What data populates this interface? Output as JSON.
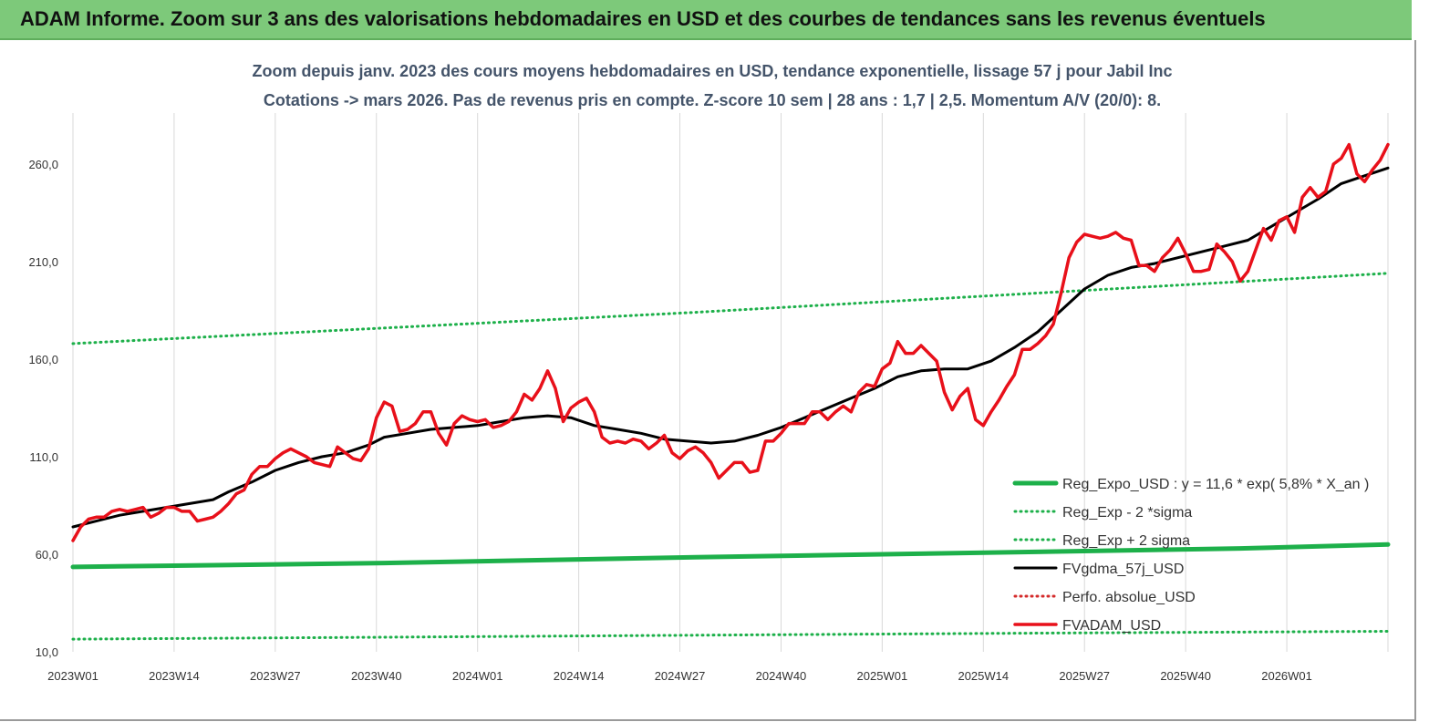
{
  "banner": {
    "title": "ADAM Informe. Zoom sur 3 ans des valorisations hebdomadaires en USD et des courbes de tendances sans les revenus éventuels"
  },
  "chart_data": {
    "type": "line",
    "title_line1": "Zoom depuis janv. 2023 des cours moyens hebdomadaires en USD, tendance exponentielle, lissage 57 j pour Jabil Inc",
    "title_line2": "Cotations -> mars 2026. Pas de revenus pris en compte. Z-score 10 sem | 28 ans : 1,7 | 2,5. Momentum A/V (20/0): 8.",
    "ylim": [
      10,
      285
    ],
    "y_ticks": [
      10,
      60,
      110,
      160,
      210,
      260
    ],
    "y_tick_labels": [
      "10,0",
      "60,0",
      "110,0",
      "160,0",
      "210,0",
      "260,0"
    ],
    "x_range": [
      0,
      169
    ],
    "x_tick_positions": [
      0,
      13,
      26,
      39,
      52,
      65,
      78,
      91,
      104,
      117,
      130,
      143,
      156
    ],
    "x_tick_labels": [
      "2023W01",
      "2023W14",
      "2023W27",
      "2023W40",
      "2024W01",
      "2024W14",
      "2024W27",
      "2024W40",
      "2025W01",
      "2025W14",
      "2025W27",
      "2025W40",
      "2026W01"
    ],
    "grid": "vertical",
    "legend_position": "bottom-right",
    "colors": {
      "green": "#1db04a",
      "black": "#000000",
      "red": "#e8101a",
      "dotred": "#d42a2a"
    },
    "series": [
      {
        "name": "Reg_Expo_USD : y = 11,6 * exp( 5,8% *  X_an )",
        "style": "thick",
        "color": "#1db04a",
        "points": [
          [
            0,
            53.5
          ],
          [
            40,
            55.5
          ],
          [
            80,
            58.5
          ],
          [
            120,
            61
          ],
          [
            150,
            63
          ],
          [
            169,
            65
          ]
        ]
      },
      {
        "name": "Reg_Exp - 2 *sigma",
        "style": "dotted",
        "color": "#1db04a",
        "points": [
          [
            0,
            16.5
          ],
          [
            40,
            17.5
          ],
          [
            80,
            18.5
          ],
          [
            120,
            19.5
          ],
          [
            169,
            20.5
          ]
        ]
      },
      {
        "name": "Reg_Exp + 2 sigma",
        "style": "dotted",
        "color": "#1db04a",
        "points": [
          [
            0,
            168
          ],
          [
            40,
            176
          ],
          [
            80,
            184
          ],
          [
            120,
            193
          ],
          [
            169,
            204
          ]
        ]
      },
      {
        "name": "FVgdma_57j_USD",
        "style": "solid",
        "color": "#000000",
        "points": [
          [
            0,
            74
          ],
          [
            3,
            77
          ],
          [
            6,
            80
          ],
          [
            9,
            82
          ],
          [
            12,
            84
          ],
          [
            15,
            86
          ],
          [
            18,
            88
          ],
          [
            20,
            92
          ],
          [
            23,
            97
          ],
          [
            26,
            103
          ],
          [
            29,
            107
          ],
          [
            32,
            110
          ],
          [
            35,
            112
          ],
          [
            38,
            116
          ],
          [
            40,
            120
          ],
          [
            43,
            122
          ],
          [
            46,
            124
          ],
          [
            49,
            125
          ],
          [
            52,
            126
          ],
          [
            55,
            128
          ],
          [
            58,
            130
          ],
          [
            61,
            131
          ],
          [
            64,
            130
          ],
          [
            67,
            126
          ],
          [
            70,
            124
          ],
          [
            73,
            122
          ],
          [
            76,
            119
          ],
          [
            79,
            118
          ],
          [
            82,
            117
          ],
          [
            85,
            118
          ],
          [
            88,
            121
          ],
          [
            91,
            125
          ],
          [
            94,
            130
          ],
          [
            97,
            135
          ],
          [
            100,
            140
          ],
          [
            103,
            145
          ],
          [
            106,
            151
          ],
          [
            109,
            154
          ],
          [
            112,
            155
          ],
          [
            115,
            155
          ],
          [
            118,
            159
          ],
          [
            121,
            166
          ],
          [
            124,
            174
          ],
          [
            127,
            185
          ],
          [
            130,
            196
          ],
          [
            133,
            203
          ],
          [
            136,
            207
          ],
          [
            139,
            209
          ],
          [
            142,
            212
          ],
          [
            145,
            215
          ],
          [
            148,
            218
          ],
          [
            151,
            221
          ],
          [
            154,
            228
          ],
          [
            157,
            235
          ],
          [
            160,
            242
          ],
          [
            163,
            250
          ],
          [
            166,
            254
          ],
          [
            169,
            258
          ]
        ]
      },
      {
        "name": "Perfo. absolue_USD",
        "style": "dotted",
        "color": "#d42a2a",
        "points": []
      },
      {
        "name": "FVADAM_USD",
        "style": "solid-thick",
        "color": "#e8101a",
        "points": [
          [
            0,
            67
          ],
          [
            1,
            74
          ],
          [
            2,
            78
          ],
          [
            3,
            79
          ],
          [
            4,
            79
          ],
          [
            5,
            82
          ],
          [
            6,
            83
          ],
          [
            7,
            82
          ],
          [
            8,
            83
          ],
          [
            9,
            84
          ],
          [
            10,
            79
          ],
          [
            11,
            81
          ],
          [
            12,
            84
          ],
          [
            13,
            84
          ],
          [
            14,
            82
          ],
          [
            15,
            82
          ],
          [
            16,
            77
          ],
          [
            17,
            78
          ],
          [
            18,
            79
          ],
          [
            19,
            82
          ],
          [
            20,
            86
          ],
          [
            21,
            91
          ],
          [
            22,
            93
          ],
          [
            23,
            101
          ],
          [
            24,
            105
          ],
          [
            25,
            105
          ],
          [
            26,
            109
          ],
          [
            27,
            112
          ],
          [
            28,
            114
          ],
          [
            29,
            112
          ],
          [
            30,
            110
          ],
          [
            31,
            107
          ],
          [
            32,
            106
          ],
          [
            33,
            105
          ],
          [
            34,
            115
          ],
          [
            35,
            112
          ],
          [
            36,
            109
          ],
          [
            37,
            108
          ],
          [
            38,
            114
          ],
          [
            39,
            130
          ],
          [
            40,
            138
          ],
          [
            41,
            136
          ],
          [
            42,
            123
          ],
          [
            43,
            124
          ],
          [
            44,
            127
          ],
          [
            45,
            133
          ],
          [
            46,
            133
          ],
          [
            47,
            122
          ],
          [
            48,
            116
          ],
          [
            49,
            127
          ],
          [
            50,
            131
          ],
          [
            51,
            129
          ],
          [
            52,
            128
          ],
          [
            53,
            129
          ],
          [
            54,
            125
          ],
          [
            55,
            126
          ],
          [
            56,
            128
          ],
          [
            57,
            133
          ],
          [
            58,
            142
          ],
          [
            59,
            139
          ],
          [
            60,
            145
          ],
          [
            61,
            154
          ],
          [
            62,
            145
          ],
          [
            63,
            128
          ],
          [
            64,
            135
          ],
          [
            65,
            138
          ],
          [
            66,
            140
          ],
          [
            67,
            133
          ],
          [
            68,
            120
          ],
          [
            69,
            117
          ],
          [
            70,
            118
          ],
          [
            71,
            117
          ],
          [
            72,
            119
          ],
          [
            73,
            118
          ],
          [
            74,
            114
          ],
          [
            75,
            117
          ],
          [
            76,
            121
          ],
          [
            77,
            112
          ],
          [
            78,
            109
          ],
          [
            79,
            113
          ],
          [
            80,
            115
          ],
          [
            81,
            112
          ],
          [
            82,
            107
          ],
          [
            83,
            99
          ],
          [
            84,
            103
          ],
          [
            85,
            107
          ],
          [
            86,
            107
          ],
          [
            87,
            102
          ],
          [
            88,
            103
          ],
          [
            89,
            118
          ],
          [
            90,
            118
          ],
          [
            91,
            122
          ],
          [
            92,
            127
          ],
          [
            93,
            127
          ],
          [
            94,
            127
          ],
          [
            95,
            133
          ],
          [
            96,
            133
          ],
          [
            97,
            129
          ],
          [
            98,
            133
          ],
          [
            99,
            136
          ],
          [
            100,
            133
          ],
          [
            101,
            143
          ],
          [
            102,
            147
          ],
          [
            103,
            146
          ],
          [
            104,
            155
          ],
          [
            105,
            158
          ],
          [
            106,
            169
          ],
          [
            107,
            163
          ],
          [
            108,
            163
          ],
          [
            109,
            167
          ],
          [
            110,
            163
          ],
          [
            111,
            159
          ],
          [
            112,
            143
          ],
          [
            113,
            134
          ],
          [
            114,
            141
          ],
          [
            115,
            145
          ],
          [
            116,
            129
          ],
          [
            117,
            126
          ],
          [
            118,
            133
          ],
          [
            119,
            139
          ],
          [
            120,
            146
          ],
          [
            121,
            152
          ],
          [
            122,
            165
          ],
          [
            123,
            165
          ],
          [
            124,
            168
          ],
          [
            125,
            172
          ],
          [
            126,
            178
          ],
          [
            127,
            194
          ],
          [
            128,
            212
          ],
          [
            129,
            220
          ],
          [
            130,
            224
          ],
          [
            131,
            223
          ],
          [
            132,
            222
          ],
          [
            133,
            223
          ],
          [
            134,
            225
          ],
          [
            135,
            222
          ],
          [
            136,
            221
          ],
          [
            137,
            208
          ],
          [
            138,
            208
          ],
          [
            139,
            205
          ],
          [
            140,
            212
          ],
          [
            141,
            216
          ],
          [
            142,
            222
          ],
          [
            143,
            214
          ],
          [
            144,
            205
          ],
          [
            145,
            205
          ],
          [
            146,
            206
          ],
          [
            147,
            219
          ],
          [
            148,
            215
          ],
          [
            149,
            210
          ],
          [
            150,
            200
          ],
          [
            151,
            205
          ],
          [
            152,
            216
          ],
          [
            153,
            227
          ],
          [
            154,
            221
          ],
          [
            155,
            231
          ],
          [
            156,
            233
          ],
          [
            157,
            225
          ],
          [
            158,
            243
          ],
          [
            159,
            248
          ],
          [
            160,
            243
          ],
          [
            161,
            246
          ],
          [
            162,
            260
          ],
          [
            163,
            263
          ],
          [
            164,
            270
          ],
          [
            165,
            255
          ],
          [
            166,
            251
          ],
          [
            167,
            257
          ],
          [
            168,
            262
          ],
          [
            169,
            270
          ]
        ]
      }
    ]
  }
}
